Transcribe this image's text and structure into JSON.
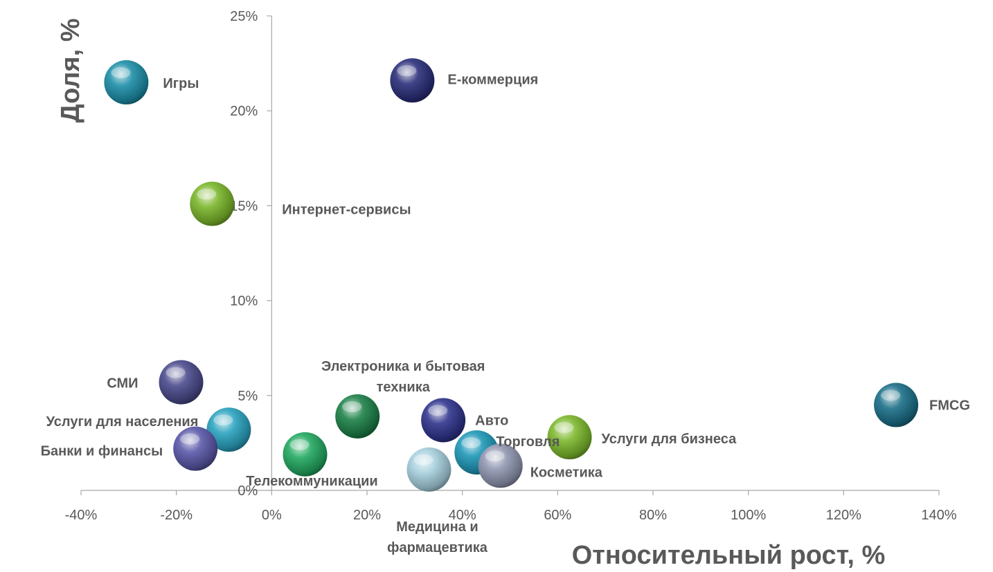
{
  "chart_data": {
    "type": "scatter",
    "title": "",
    "xlabel": "Относительный рост, %",
    "ylabel": "Доля, %",
    "xlim": [
      -0.4,
      1.4
    ],
    "ylim": [
      0,
      0.25
    ],
    "x_ticks": [
      -0.4,
      -0.2,
      0,
      0.2,
      0.4,
      0.6,
      0.8,
      1.0,
      1.2,
      1.4
    ],
    "x_tick_labels": [
      "-40%",
      "-20%",
      "0%",
      "20%",
      "40%",
      "60%",
      "80%",
      "100%",
      "120%",
      "140%"
    ],
    "y_ticks": [
      0,
      0.05,
      0.1,
      0.15,
      0.2,
      0.25
    ],
    "y_tick_labels": [
      "0%",
      "5%",
      "10%",
      "15%",
      "20%",
      "25%"
    ],
    "grid": false,
    "legend": "none",
    "points": [
      {
        "name": "Игры",
        "x": -0.305,
        "y": 0.215,
        "color": "#1c8fa8"
      },
      {
        "name": "E-коммерция",
        "x": 0.295,
        "y": 0.216,
        "color": "#2b2f7a"
      },
      {
        "name": "Интернет-сервисы",
        "x": -0.125,
        "y": 0.151,
        "color": "#7ab62a"
      },
      {
        "name": "СМИ",
        "x": -0.19,
        "y": 0.057,
        "color": "#4a4a8c"
      },
      {
        "name": "Услуги для населения",
        "x": -0.09,
        "y": 0.032,
        "color": "#2aa3c0"
      },
      {
        "name": "Банки и финансы",
        "x": -0.16,
        "y": 0.022,
        "color": "#5a58a8"
      },
      {
        "name": "Телекоммуникации",
        "x": 0.07,
        "y": 0.019,
        "color": "#22a860"
      },
      {
        "name": "Электроника и бытовая техника",
        "x": 0.18,
        "y": 0.039,
        "color": "#1c8048"
      },
      {
        "name": "Медицина и фармацевтика",
        "x": 0.33,
        "y": 0.011,
        "color": "#a6d0de"
      },
      {
        "name": "Авто",
        "x": 0.36,
        "y": 0.037,
        "color": "#2f348c"
      },
      {
        "name": "Торговля",
        "x": 0.43,
        "y": 0.02,
        "color": "#1f98b8"
      },
      {
        "name": "Косметика",
        "x": 0.48,
        "y": 0.013,
        "color": "#9096b0"
      },
      {
        "name": "Услуги для бизнеса",
        "x": 0.625,
        "y": 0.028,
        "color": "#7cb82c"
      },
      {
        "name": "FMCG",
        "x": 1.31,
        "y": 0.045,
        "color": "#1a6e88"
      }
    ]
  }
}
